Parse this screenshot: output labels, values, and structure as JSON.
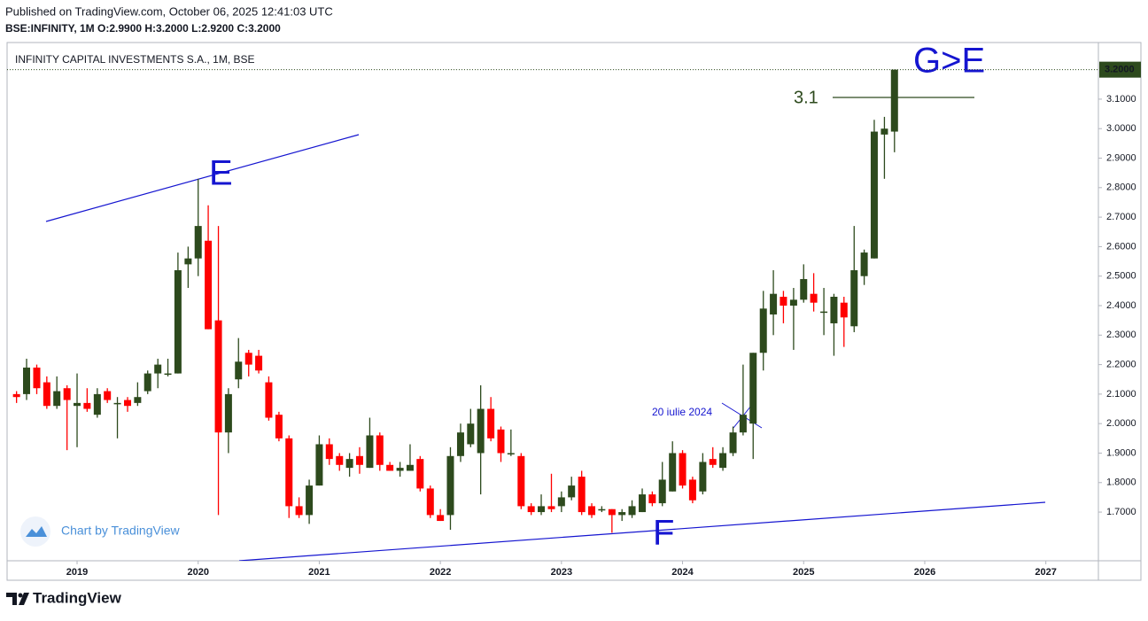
{
  "header": {
    "published": "Published on TradingView.com, October 06, 2025 12:41:03 UTC",
    "symbol_line": "BSE:INFINITY, 1M  O:2.9900 H:3.2000 L:2.9200 C:3.2000"
  },
  "footer": {
    "brand": "TradingView"
  },
  "chart_data": {
    "type": "candlestick",
    "title": "INFINITY CAPITAL INVESTMENTS S.A., 1M, BSE",
    "watermark": "Chart by TradingView",
    "up_color": "#2d4a1d",
    "down_color": "#ff0000",
    "xlim": [
      2018.422,
      2027.434
    ],
    "xticks": [
      2019,
      2020,
      2021,
      2022,
      2023,
      2024,
      2025,
      2026,
      2027
    ],
    "ylim": [
      1.535,
      3.292
    ],
    "yticks": [
      {
        "value": 1.7,
        "label": "1.7000"
      },
      {
        "value": 1.8,
        "label": "1.8000"
      },
      {
        "value": 1.9,
        "label": "1.9000"
      },
      {
        "value": 2.0,
        "label": "2.0000"
      },
      {
        "value": 2.1,
        "label": "2.1000"
      },
      {
        "value": 2.2,
        "label": "2.2000"
      },
      {
        "value": 2.3,
        "label": "2.3000"
      },
      {
        "value": 2.4,
        "label": "2.4000"
      },
      {
        "value": 2.5,
        "label": "2.5000"
      },
      {
        "value": 2.6,
        "label": "2.6000"
      },
      {
        "value": 2.7,
        "label": "2.7000"
      },
      {
        "value": 2.8,
        "label": "2.8000"
      },
      {
        "value": 2.9,
        "label": "2.9000"
      },
      {
        "value": 3.0,
        "label": "3.0000"
      },
      {
        "value": 3.1,
        "label": "3.1000"
      }
    ],
    "last_price": {
      "value": 3.2,
      "label": "3.2000"
    },
    "annotations": {
      "e": "E",
      "f": "F",
      "ge": "G>E",
      "level": "3.1",
      "date": "20 iulie 2024"
    },
    "x": [
      2018.5,
      2018.583,
      2018.667,
      2018.75,
      2018.833,
      2018.917,
      2019.0,
      2019.083,
      2019.167,
      2019.25,
      2019.333,
      2019.417,
      2019.5,
      2019.583,
      2019.667,
      2019.75,
      2019.833,
      2019.917,
      2020.0,
      2020.083,
      2020.167,
      2020.25,
      2020.333,
      2020.417,
      2020.5,
      2020.583,
      2020.667,
      2020.75,
      2020.833,
      2020.917,
      2021.0,
      2021.083,
      2021.167,
      2021.25,
      2021.333,
      2021.417,
      2021.5,
      2021.583,
      2021.667,
      2021.75,
      2021.833,
      2021.917,
      2022.0,
      2022.083,
      2022.167,
      2022.25,
      2022.333,
      2022.417,
      2022.5,
      2022.583,
      2022.667,
      2022.75,
      2022.833,
      2022.917,
      2023.0,
      2023.083,
      2023.167,
      2023.25,
      2023.333,
      2023.417,
      2023.5,
      2023.583,
      2023.667,
      2023.75,
      2023.833,
      2023.917,
      2024.0,
      2024.083,
      2024.167,
      2024.25,
      2024.333,
      2024.417,
      2024.5,
      2024.583,
      2024.667,
      2024.75,
      2024.833,
      2024.917,
      2025.0,
      2025.083,
      2025.167,
      2025.25,
      2025.333,
      2025.417,
      2025.5,
      2025.583,
      2025.667,
      2025.75
    ],
    "open": [
      2.1,
      2.1,
      2.19,
      2.14,
      2.06,
      2.12,
      2.06,
      2.07,
      2.03,
      2.11,
      2.07,
      2.08,
      2.07,
      2.11,
      2.17,
      2.17,
      2.17,
      2.54,
      2.56,
      2.62,
      2.35,
      1.97,
      2.15,
      2.24,
      2.23,
      2.14,
      2.03,
      1.95,
      1.72,
      1.69,
      1.79,
      1.93,
      1.89,
      1.85,
      1.89,
      1.85,
      1.96,
      1.86,
      1.84,
      1.84,
      1.88,
      1.78,
      1.69,
      1.69,
      1.89,
      1.93,
      1.9,
      2.05,
      1.98,
      1.9,
      1.89,
      1.72,
      1.7,
      1.72,
      1.72,
      1.75,
      1.82,
      1.72,
      1.71,
      1.71,
      1.69,
      1.69,
      1.7,
      1.76,
      1.73,
      1.77,
      1.9,
      1.81,
      1.77,
      1.88,
      1.85,
      1.9,
      1.97,
      2.0,
      2.24,
      2.37,
      2.43,
      2.4,
      2.42,
      2.44,
      2.38,
      2.34,
      2.41,
      2.33,
      2.5,
      2.56,
      2.98,
      2.99
    ],
    "high": [
      2.11,
      2.22,
      2.2,
      2.16,
      2.16,
      2.13,
      2.17,
      2.12,
      2.12,
      2.12,
      2.09,
      2.09,
      2.14,
      2.18,
      2.22,
      2.22,
      2.58,
      2.6,
      2.83,
      2.74,
      2.67,
      2.12,
      2.29,
      2.25,
      2.25,
      2.16,
      2.04,
      1.96,
      1.75,
      1.81,
      1.96,
      1.95,
      1.9,
      1.9,
      1.92,
      2.02,
      1.97,
      1.87,
      1.87,
      1.93,
      1.89,
      1.79,
      1.71,
      1.92,
      2.0,
      2.05,
      2.13,
      2.09,
      1.99,
      1.98,
      1.9,
      1.73,
      1.76,
      1.83,
      1.77,
      1.82,
      1.84,
      1.73,
      1.72,
      1.71,
      1.71,
      1.74,
      1.78,
      1.77,
      1.87,
      1.94,
      1.91,
      1.82,
      1.9,
      1.92,
      1.92,
      1.99,
      2.2,
      2.24,
      2.45,
      2.52,
      2.45,
      2.46,
      2.54,
      2.51,
      2.46,
      2.44,
      2.43,
      2.67,
      2.59,
      3.03,
      3.04,
      3.2
    ],
    "low": [
      2.07,
      2.08,
      2.1,
      2.05,
      2.05,
      1.91,
      1.92,
      2.04,
      2.02,
      2.07,
      1.95,
      2.04,
      2.06,
      2.1,
      2.12,
      2.16,
      2.17,
      2.46,
      2.5,
      2.32,
      1.69,
      1.9,
      2.12,
      2.16,
      2.17,
      2.01,
      1.94,
      1.68,
      1.68,
      1.66,
      1.79,
      1.86,
      1.84,
      1.82,
      1.83,
      1.85,
      1.84,
      1.84,
      1.82,
      1.84,
      1.77,
      1.68,
      1.67,
      1.64,
      1.87,
      1.92,
      1.76,
      1.94,
      1.87,
      1.89,
      1.71,
      1.69,
      1.69,
      1.7,
      1.7,
      1.74,
      1.69,
      1.68,
      1.7,
      1.63,
      1.67,
      1.68,
      1.7,
      1.72,
      1.72,
      1.77,
      1.78,
      1.73,
      1.76,
      1.85,
      1.84,
      1.89,
      1.96,
      1.88,
      2.18,
      2.3,
      2.34,
      2.25,
      2.41,
      2.38,
      2.3,
      2.23,
      2.26,
      2.31,
      2.47,
      2.56,
      2.83,
      2.92
    ],
    "close": [
      2.09,
      2.19,
      2.12,
      2.06,
      2.11,
      2.08,
      2.07,
      2.05,
      2.1,
      2.08,
      2.07,
      2.06,
      2.09,
      2.17,
      2.2,
      2.17,
      2.52,
      2.56,
      2.67,
      2.32,
      1.97,
      2.1,
      2.21,
      2.2,
      2.18,
      2.02,
      1.95,
      1.72,
      1.69,
      1.79,
      1.93,
      1.88,
      1.86,
      1.88,
      1.86,
      1.96,
      1.86,
      1.84,
      1.85,
      1.86,
      1.78,
      1.69,
      1.67,
      1.89,
      1.97,
      2.0,
      2.05,
      1.95,
      1.9,
      1.9,
      1.72,
      1.7,
      1.72,
      1.71,
      1.75,
      1.79,
      1.7,
      1.69,
      1.71,
      1.69,
      1.7,
      1.72,
      1.76,
      1.73,
      1.81,
      1.9,
      1.79,
      1.74,
      1.87,
      1.86,
      1.9,
      1.97,
      2.03,
      2.24,
      2.39,
      2.44,
      2.4,
      2.42,
      2.49,
      2.41,
      2.38,
      2.43,
      2.36,
      2.52,
      2.58,
      2.99,
      3.0,
      3.2
    ]
  }
}
